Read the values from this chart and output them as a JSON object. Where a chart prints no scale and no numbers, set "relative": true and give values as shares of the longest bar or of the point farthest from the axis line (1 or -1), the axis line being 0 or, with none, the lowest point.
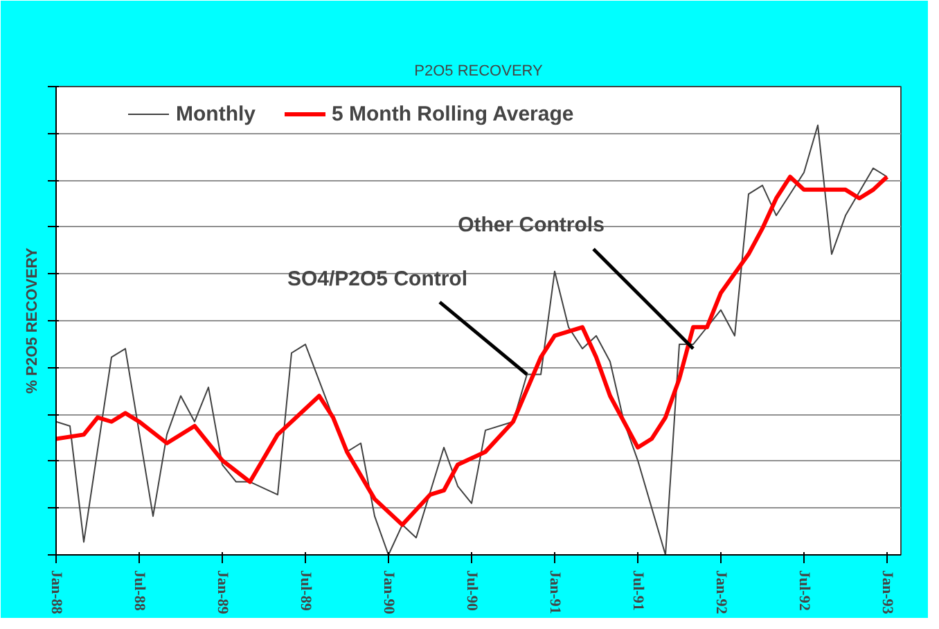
{
  "chart_data": {
    "type": "line",
    "title": "P2O5 RECOVERY",
    "ylabel": "% P2O5 RECOVERY",
    "relative": true,
    "grid": "y",
    "legend": "top",
    "xlim": [
      "1988-01",
      "1993-02"
    ],
    "xticks": [
      {
        "value": "1988-01",
        "label": "Jan-88"
      },
      {
        "value": "1988-07",
        "label": "Jul-88"
      },
      {
        "value": "1989-01",
        "label": "Jan-89"
      },
      {
        "value": "1989-07",
        "label": "Jul-89"
      },
      {
        "value": "1990-01",
        "label": "Jan-90"
      },
      {
        "value": "1990-07",
        "label": "Jul-90"
      },
      {
        "value": "1991-01",
        "label": "Jan-91"
      },
      {
        "value": "1991-07",
        "label": "Jul-91"
      },
      {
        "value": "1992-01",
        "label": "Jan-92"
      },
      {
        "value": "1992-07",
        "label": "Jul-92"
      },
      {
        "value": "1993-01",
        "label": "Jan-93"
      }
    ],
    "annotations": [
      {
        "text": "SO4/P2O5 Control",
        "x": "1990-11",
        "y": 0.42
      },
      {
        "text": "Other Controls",
        "x": "1991-11",
        "y": 0.48
      }
    ],
    "series": [
      {
        "name": "Monthly",
        "color": "#404040",
        "x": [
          "1988-01",
          "1988-02",
          "1988-03",
          "1988-05",
          "1988-06",
          "1988-08",
          "1988-09",
          "1988-10",
          "1988-11",
          "1988-12",
          "1989-01",
          "1989-02",
          "1989-03",
          "1989-05",
          "1989-06",
          "1989-07",
          "1989-09",
          "1989-10",
          "1989-11",
          "1989-12",
          "1990-01",
          "1990-02",
          "1990-03",
          "1990-05",
          "1990-06",
          "1990-07",
          "1990-08",
          "1990-10",
          "1990-11",
          "1990-12",
          "1991-01",
          "1991-02",
          "1991-03",
          "1991-04",
          "1991-05",
          "1991-06",
          "1991-07",
          "1991-09",
          "1991-10",
          "1991-11",
          "1991-12",
          "1992-01",
          "1992-02",
          "1992-03",
          "1992-04",
          "1992-05",
          "1992-06",
          "1992-07",
          "1992-08",
          "1992-09",
          "1992-10",
          "1992-12",
          "1993-01"
        ],
        "values": [
          0.31,
          0.3,
          0.03,
          0.46,
          0.48,
          0.09,
          0.28,
          0.37,
          0.31,
          0.39,
          0.21,
          0.17,
          0.17,
          0.14,
          0.47,
          0.49,
          0.32,
          0.24,
          0.26,
          0.09,
          0,
          0.07,
          0.04,
          0.25,
          0.16,
          0.12,
          0.29,
          0.31,
          0.42,
          0.42,
          0.66,
          0.53,
          0.48,
          0.51,
          0.45,
          0.31,
          0.22,
          0,
          0.49,
          0.49,
          0.53,
          0.57,
          0.51,
          0.84,
          0.86,
          0.79,
          0.84,
          0.89,
          1.0,
          0.7,
          0.79,
          0.9,
          0.88
        ]
      },
      {
        "name": "5 Month Rolling Average",
        "color": "#ff0000",
        "x": [
          "1988-01",
          "1988-03",
          "1988-04",
          "1988-05",
          "1988-06",
          "1988-07",
          "1988-09",
          "1988-11",
          "1989-01",
          "1989-03",
          "1989-05",
          "1989-08",
          "1989-09",
          "1989-10",
          "1989-12",
          "1990-02",
          "1990-04",
          "1990-05",
          "1990-06",
          "1990-08",
          "1990-10",
          "1990-12",
          "1991-01",
          "1991-03",
          "1991-04",
          "1991-05",
          "1991-07",
          "1991-08",
          "1991-09",
          "1991-10",
          "1991-11",
          "1991-12",
          "1992-01",
          "1992-03",
          "1992-04",
          "1992-05",
          "1992-06",
          "1992-07",
          "1992-08",
          "1992-10",
          "1992-11",
          "1992-12",
          "1993-01"
        ],
        "values": [
          0.27,
          0.28,
          0.32,
          0.31,
          0.33,
          0.31,
          0.26,
          0.3,
          0.22,
          0.17,
          0.28,
          0.37,
          0.32,
          0.24,
          0.13,
          0.07,
          0.14,
          0.15,
          0.21,
          0.24,
          0.31,
          0.46,
          0.51,
          0.53,
          0.46,
          0.37,
          0.25,
          0.27,
          0.32,
          0.41,
          0.53,
          0.53,
          0.61,
          0.7,
          0.76,
          0.83,
          0.88,
          0.85,
          0.85,
          0.85,
          0.83,
          0.85,
          0.88
        ]
      }
    ]
  }
}
